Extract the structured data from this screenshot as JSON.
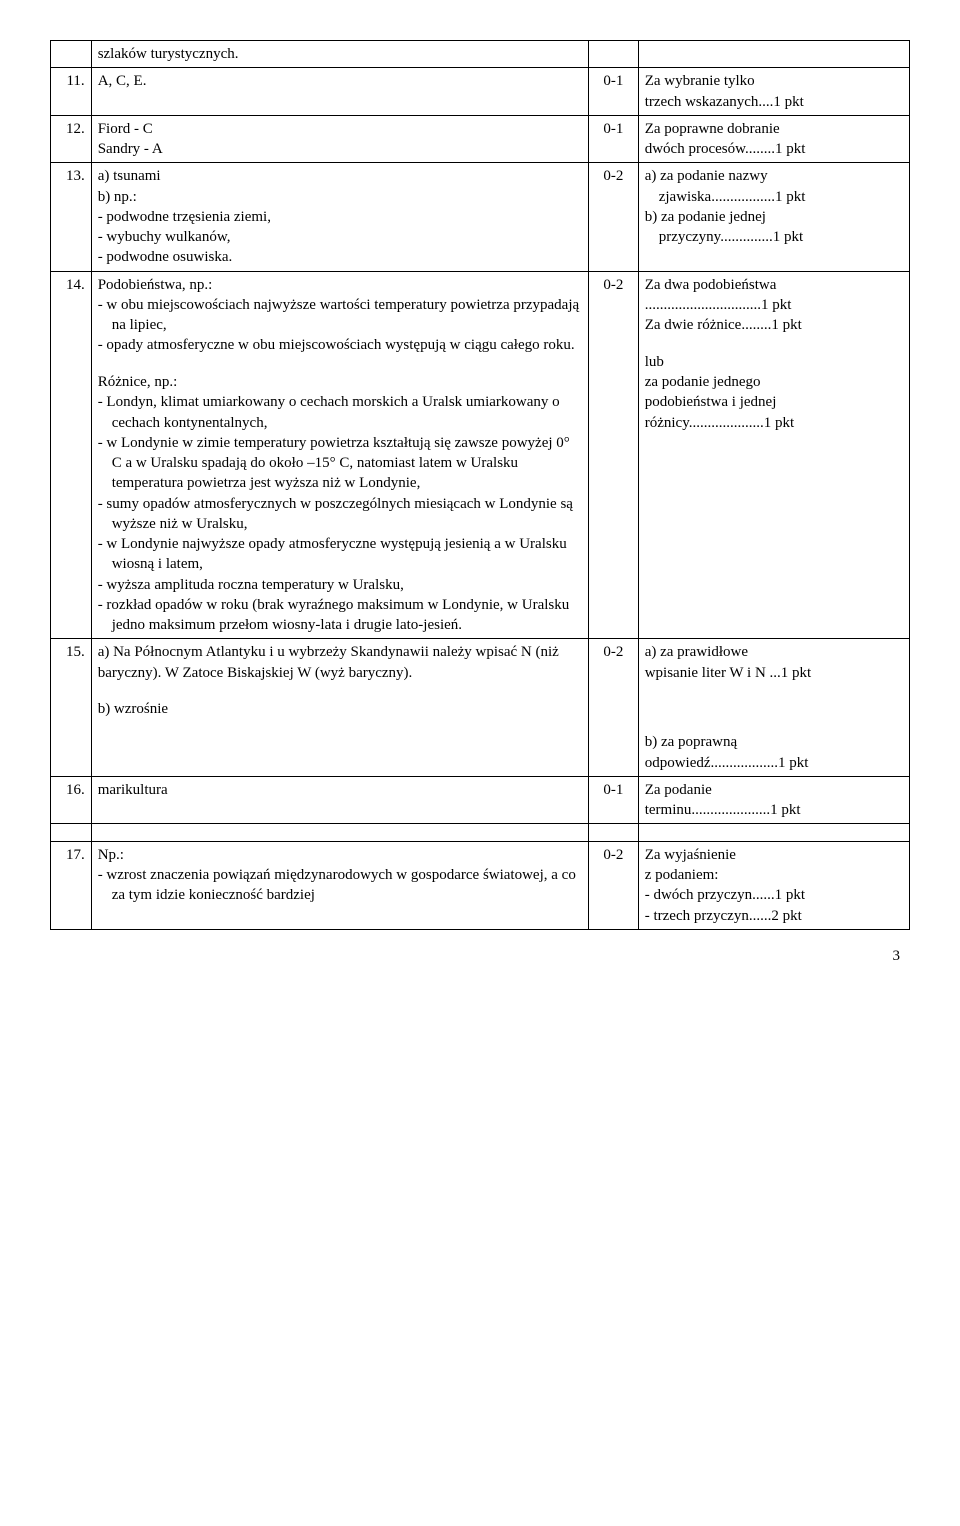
{
  "rows": [
    {
      "num": "",
      "content": "szlaków turystycznych.",
      "score": "",
      "crit": ""
    },
    {
      "num": "11.",
      "content": "A, C, E.",
      "score": "0-1",
      "crit": "Za wybranie tylko\n trzech wskazanych....1 pkt"
    },
    {
      "num": "12.",
      "content": "Fiord   -   C\nSandry   -  A",
      "score": "0-1",
      "crit": "Za poprawne dobranie\ndwóch procesów........1 pkt"
    },
    {
      "num": "13.",
      "content": "a) tsunami\nb) np.:\n- podwodne trzęsienia ziemi,\n- wybuchy wulkanów,\n- podwodne osuwiska.",
      "score": "0-2",
      "crit": "a) za podanie nazwy\n   zjawiska.................1 pkt\nb) za podanie jednej\n   przyczyny..............1 pkt"
    },
    {
      "num": "14.",
      "content": "Podobieństwa, np.:\n- w obu miejscowościach najwyższe wartości temperatury powietrza przypadają na lipiec,\n- opady atmosferyczne w obu miejscowościach występują w ciągu całego roku.\n\nRóżnice, np.:\n- Londyn, klimat umiarkowany o cechach morskich a Uralsk umiarkowany o cechach kontynentalnych,\n- w Londynie w zimie temperatury powietrza kształtują się zawsze powyżej 0° C a w Uralsku spadają do około –15° C, natomiast latem w Uralsku temperatura powietrza jest wyższa niż w Londynie,\n- sumy opadów atmosferycznych w poszczególnych miesiącach w Londynie są wyższe niż w Uralsku,\n- w Londynie najwyższe opady atmosferyczne występują jesienią a w Uralsku wiosną i latem,\n- wyższa amplituda roczna temperatury w Uralsku,\n- rozkład opadów w roku (brak wyraźnego maksimum w Londynie, w Uralsku jedno maksimum przełom wiosny-lata i drugie lato-jesień.",
      "score": "0-2",
      "crit": "Za dwa podobieństwa\n...............................1 pkt\nZa dwie różnice........1 pkt\n\nlub\nza podanie jednego\npodobieństwa i jednej\nróżnicy....................1 pkt"
    },
    {
      "num": "15.",
      "content": "a) Na Północnym Atlantyku i u wybrzeży Skandynawii należy wpisać N (niż baryczny). W Zatoce Biskajskiej W (wyż baryczny).\n\nb) wzrośnie",
      "score": "0-2",
      "crit": "a) za prawidłowe\nwpisanie liter W i N ...1 pkt\n\n\n\nb) za poprawną\nodpowiedź..................1 pkt"
    },
    {
      "num": "16.",
      "content": "marikultura",
      "score": "0-1",
      "crit": "Za podanie\nterminu.....................1 pkt"
    },
    {
      "num": "",
      "content": "",
      "score": "",
      "crit": "",
      "spacer": true
    },
    {
      "num": "17.",
      "content": "Np.:\n- wzrost znaczenia powiązań międzynarodowych w gospodarce światowej, a co za tym idzie konieczność bardziej",
      "score": "0-2",
      "crit": "Za wyjaśnienie\nz podaniem:\n- dwóch przyczyn......1 pkt\n- trzech przyczyn......2 pkt"
    }
  ],
  "pageNumber": "3"
}
